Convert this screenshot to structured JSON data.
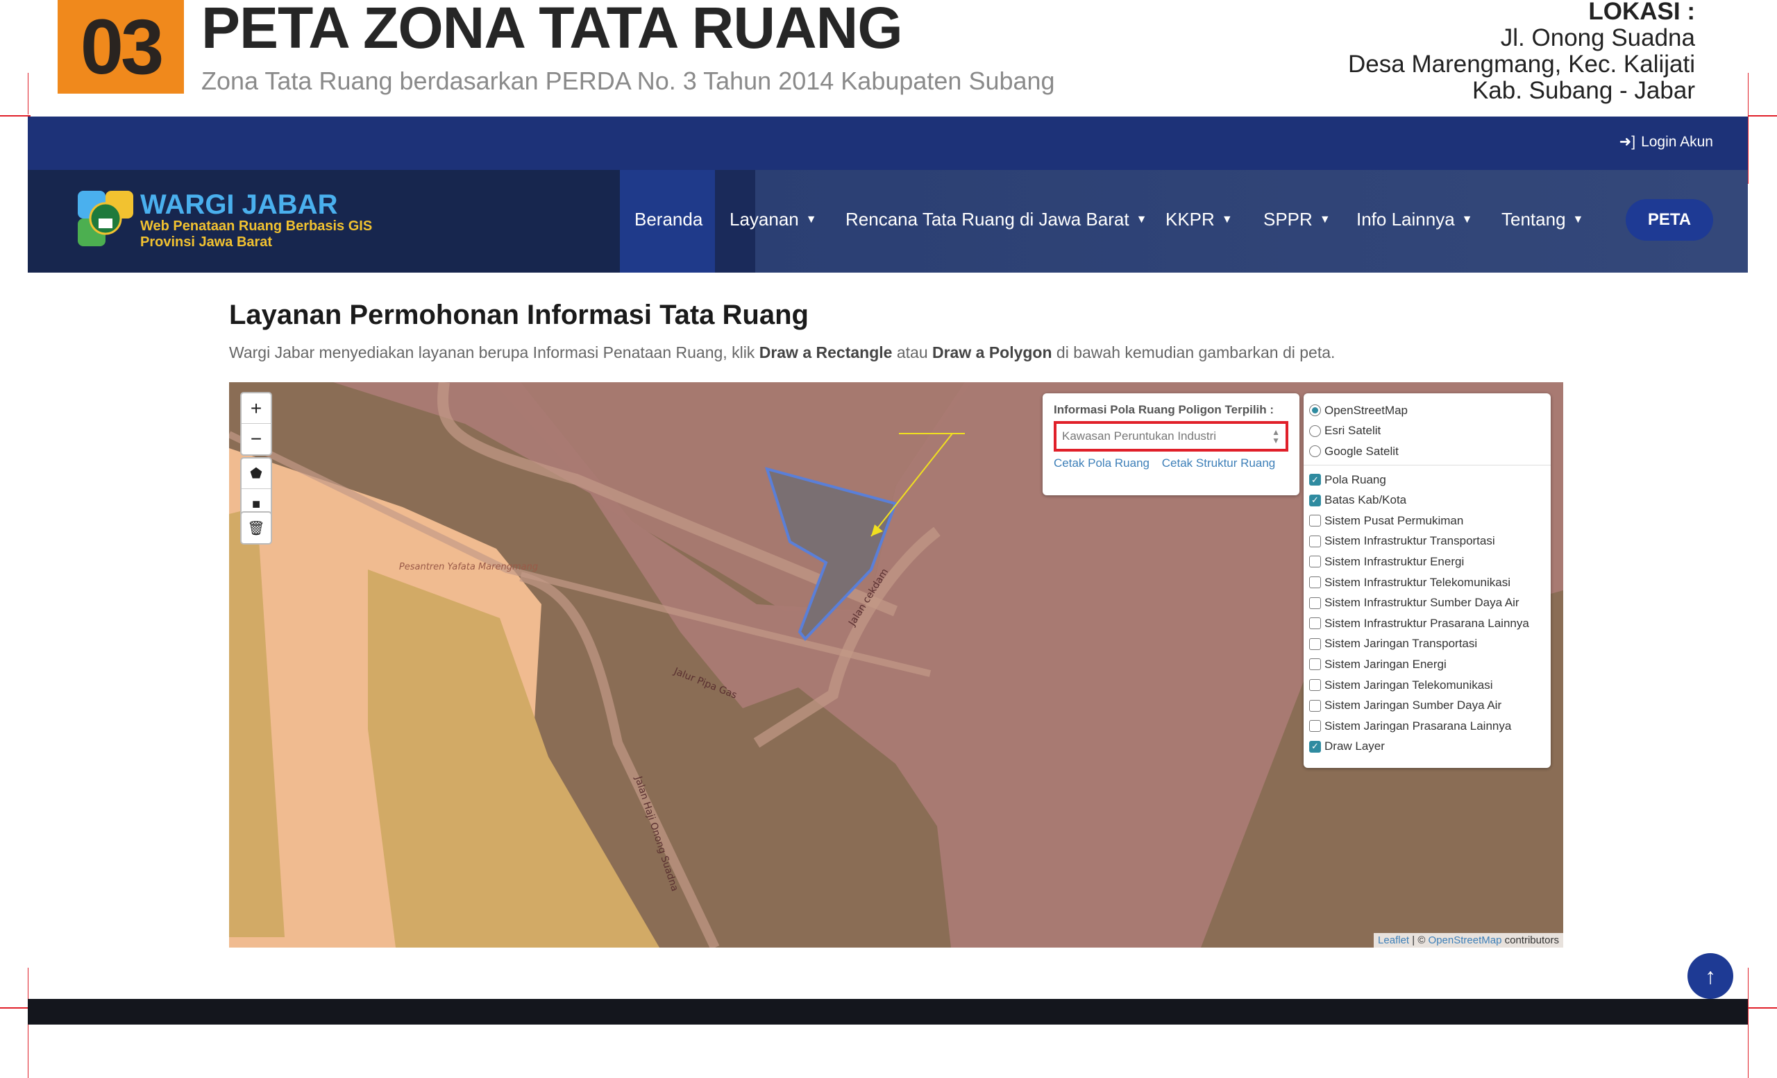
{
  "slide": {
    "number": "03",
    "title": "PETA ZONA TATA RUANG",
    "subtitle": "Zona Tata Ruang berdasarkan PERDA No. 3 Tahun 2014 Kabupaten Subang",
    "location_label": "LOKASI :",
    "location_lines": [
      "Jl. Onong Suadna",
      "Desa Marengmang, Kec. Kalijati",
      "Kab. Subang - Jabar"
    ]
  },
  "topbar": {
    "login": "Login Akun"
  },
  "brand": {
    "name": "WARGI JABAR",
    "tagline1": "Web Penataan Ruang Berbasis GIS",
    "tagline2": "Provinsi Jawa Barat"
  },
  "nav": {
    "items": [
      "Beranda",
      "Layanan",
      "Rencana Tata Ruang di Jawa Barat",
      "KKPR",
      "SPPR",
      "Info Lainnya",
      "Tentang"
    ],
    "cta": "PETA"
  },
  "page": {
    "heading": "Layanan Permohonan Informasi Tata Ruang",
    "intro_a": "Wargi Jabar menyediakan layanan berupa Informasi Penataan Ruang, klik ",
    "intro_b": "Draw a Rectangle",
    "intro_c": " atau ",
    "intro_d": "Draw a Polygon",
    "intro_e": " di bawah kemudian gambarkan di peta."
  },
  "map": {
    "info_title": "Informasi Pola Ruang Poligon Terpilih :",
    "selected_zone": "Kawasan Peruntukan Industri",
    "link_pola": "Cetak Pola Ruang",
    "link_struktur": "Cetak Struktur Ruang",
    "basemaps": [
      {
        "label": "OpenStreetMap",
        "checked": true
      },
      {
        "label": "Esri Satelit",
        "checked": false
      },
      {
        "label": "Google Satelit",
        "checked": false
      }
    ],
    "overlays": [
      {
        "label": "Pola Ruang",
        "checked": true
      },
      {
        "label": "Batas Kab/Kota",
        "checked": true
      },
      {
        "label": "Sistem Pusat Permukiman",
        "checked": false
      },
      {
        "label": "Sistem Infrastruktur Transportasi",
        "checked": false
      },
      {
        "label": "Sistem Infrastruktur Energi",
        "checked": false
      },
      {
        "label": "Sistem Infrastruktur Telekomunikasi",
        "checked": false
      },
      {
        "label": "Sistem Infrastruktur Sumber Daya Air",
        "checked": false
      },
      {
        "label": "Sistem Infrastruktur Prasarana Lainnya",
        "checked": false
      },
      {
        "label": "Sistem Jaringan Transportasi",
        "checked": false
      },
      {
        "label": "Sistem Jaringan Energi",
        "checked": false
      },
      {
        "label": "Sistem Jaringan Telekomunikasi",
        "checked": false
      },
      {
        "label": "Sistem Jaringan Sumber Daya Air",
        "checked": false
      },
      {
        "label": "Sistem Jaringan Prasarana Lainnya",
        "checked": false
      },
      {
        "label": "Draw Layer",
        "checked": true
      }
    ],
    "labels": {
      "pesantren": "Pesantren Yafata Marengmang",
      "pipa": "Jalur Pipa Gas",
      "cekdam": "Jalan cekdam",
      "onong": "Jalan Haji Onong Suadna"
    },
    "attribution": {
      "leaflet": "Leaflet",
      "sep": " | © ",
      "osm": "OpenStreetMap",
      "suffix": " contributors"
    },
    "colors": {
      "industri": "#a87a72",
      "pertanian": "#8a6d55",
      "permukiman": "#f0bb90",
      "sawah": "#d2aa66",
      "highlight": "#e0202a"
    }
  },
  "scroll_top_icon": "arrow-up-icon"
}
